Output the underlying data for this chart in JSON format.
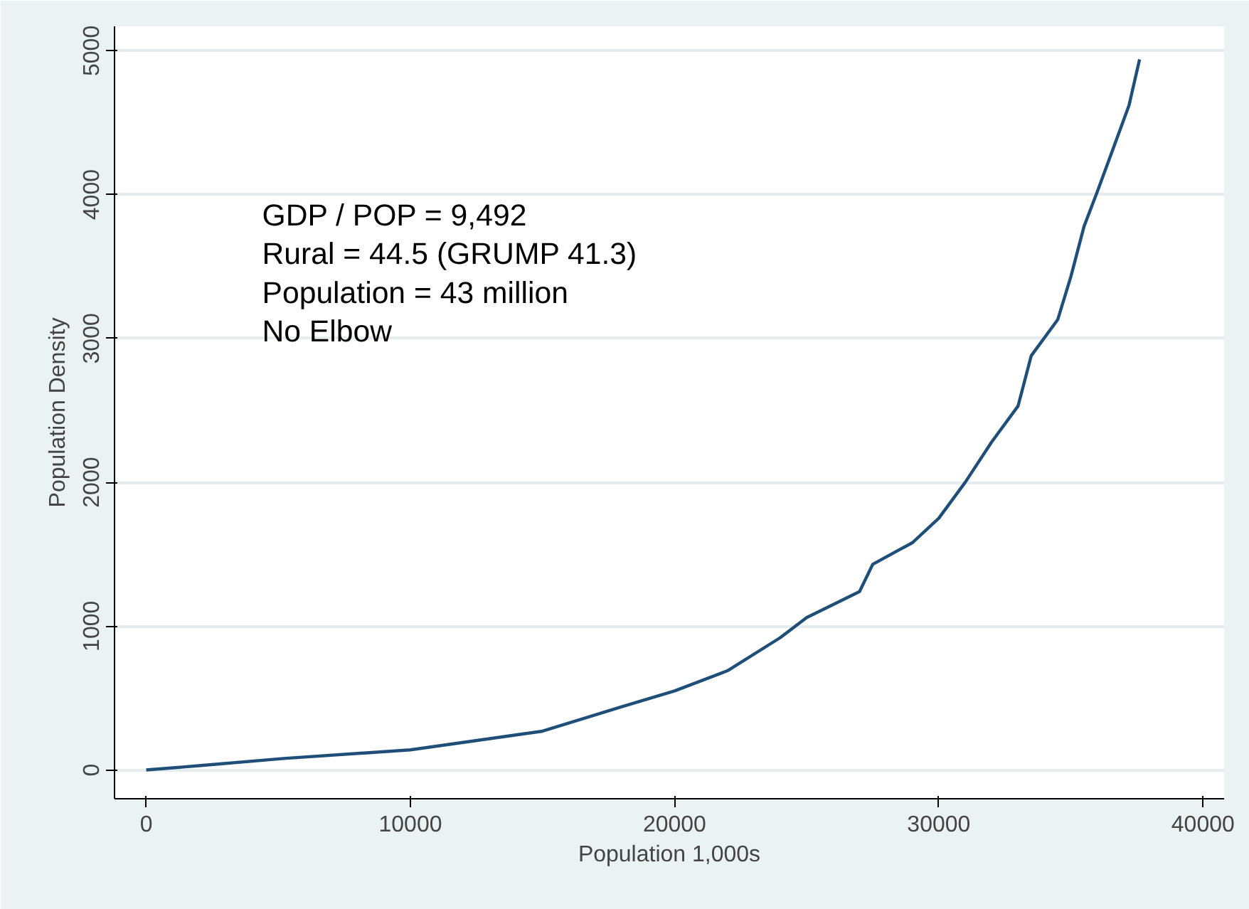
{
  "chart_data": {
    "type": "line",
    "xlabel": "Population 1,000s",
    "ylabel": "Population Density",
    "annotations": [
      "GDP / POP = 9,492",
      "Rural = 44.5  (GRUMP 41.3)",
      "Population = 43 million",
      "No Elbow"
    ],
    "x": [
      0,
      2000,
      5200,
      10000,
      15000,
      18000,
      20000,
      22000,
      24000,
      25000,
      27000,
      27500,
      29000,
      30000,
      31000,
      32000,
      33000,
      33500,
      34500,
      35000,
      35500,
      36000,
      36800,
      37200,
      37600
    ],
    "series": [
      {
        "color": "#1f4e79",
        "values": [
          0,
          30,
          80,
          140,
          270,
          440,
          550,
          690,
          920,
          1060,
          1240,
          1430,
          1580,
          1750,
          2000,
          2280,
          2530,
          2880,
          3130,
          3430,
          3780,
          4020,
          4420,
          4620,
          4940
        ]
      }
    ],
    "xlim": [
      -1200,
      40800
    ],
    "ylim": [
      -200,
      5170
    ],
    "xticks": [
      0,
      10000,
      20000,
      30000,
      40000
    ],
    "yticks": [
      0,
      1000,
      2000,
      3000,
      4000,
      5000
    ],
    "grid": "y",
    "marker": "none",
    "line_style": "solid"
  }
}
